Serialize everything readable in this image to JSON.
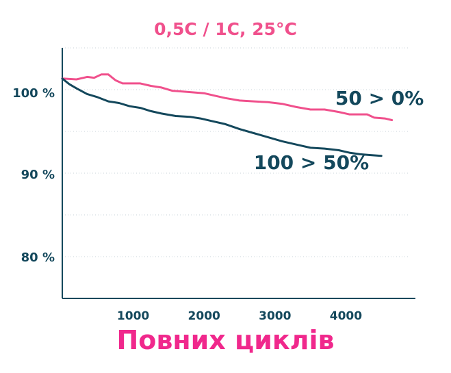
{
  "chart_data": {
    "type": "line",
    "title": "0,5C / 1C, 25°C",
    "xlabel": "Повних циклів",
    "ylabel": "",
    "xlim": [
      0,
      4500
    ],
    "ylim": [
      75,
      106
    ],
    "x_ticks": [
      {
        "value": 1000,
        "label": "1000"
      },
      {
        "value": 2000,
        "label": "2000"
      },
      {
        "value": 3000,
        "label": "3000"
      },
      {
        "value": 4000,
        "label": "4000"
      }
    ],
    "y_ticks": [
      {
        "value": 100,
        "label": "100 %"
      },
      {
        "value": 90,
        "label": "90 %"
      },
      {
        "value": 80,
        "label": "80 %"
      }
    ],
    "grid": true,
    "series": [
      {
        "name": "50 > 0%",
        "color": "#f0508c",
        "points": [
          [
            0,
            101.7
          ],
          [
            200,
            101.6
          ],
          [
            350,
            101.9
          ],
          [
            450,
            101.8
          ],
          [
            550,
            102.2
          ],
          [
            650,
            102.2
          ],
          [
            750,
            101.5
          ],
          [
            850,
            101.1
          ],
          [
            1000,
            101.1
          ],
          [
            1100,
            101.1
          ],
          [
            1250,
            100.8
          ],
          [
            1400,
            100.6
          ],
          [
            1550,
            100.2
          ],
          [
            1700,
            100.1
          ],
          [
            1850,
            100.0
          ],
          [
            2000,
            99.9
          ],
          [
            2150,
            99.6
          ],
          [
            2300,
            99.3
          ],
          [
            2500,
            99.0
          ],
          [
            2700,
            98.9
          ],
          [
            2900,
            98.8
          ],
          [
            3100,
            98.6
          ],
          [
            3300,
            98.2
          ],
          [
            3500,
            97.9
          ],
          [
            3700,
            97.9
          ],
          [
            3900,
            97.6
          ],
          [
            4050,
            97.3
          ],
          [
            4200,
            97.3
          ],
          [
            4300,
            97.3
          ],
          [
            4400,
            96.9
          ],
          [
            4550,
            96.8
          ],
          [
            4650,
            96.6
          ]
        ],
        "label_anchor": [
          3850,
          98.5
        ]
      },
      {
        "name": "100 > 50%",
        "color": "#14485c",
        "points": [
          [
            0,
            101.7
          ],
          [
            100,
            101.0
          ],
          [
            200,
            100.5
          ],
          [
            350,
            99.8
          ],
          [
            500,
            99.4
          ],
          [
            650,
            98.9
          ],
          [
            800,
            98.7
          ],
          [
            950,
            98.3
          ],
          [
            1100,
            98.1
          ],
          [
            1250,
            97.7
          ],
          [
            1400,
            97.4
          ],
          [
            1600,
            97.1
          ],
          [
            1800,
            97.0
          ],
          [
            1950,
            96.8
          ],
          [
            2100,
            96.5
          ],
          [
            2300,
            96.1
          ],
          [
            2500,
            95.5
          ],
          [
            2700,
            95.0
          ],
          [
            2900,
            94.5
          ],
          [
            3100,
            94.0
          ],
          [
            3300,
            93.6
          ],
          [
            3500,
            93.2
          ],
          [
            3700,
            93.1
          ],
          [
            3900,
            92.9
          ],
          [
            4050,
            92.6
          ],
          [
            4200,
            92.4
          ],
          [
            4350,
            92.3
          ],
          [
            4500,
            92.2
          ]
        ],
        "label_anchor": [
          2700,
          90.6
        ]
      }
    ]
  }
}
